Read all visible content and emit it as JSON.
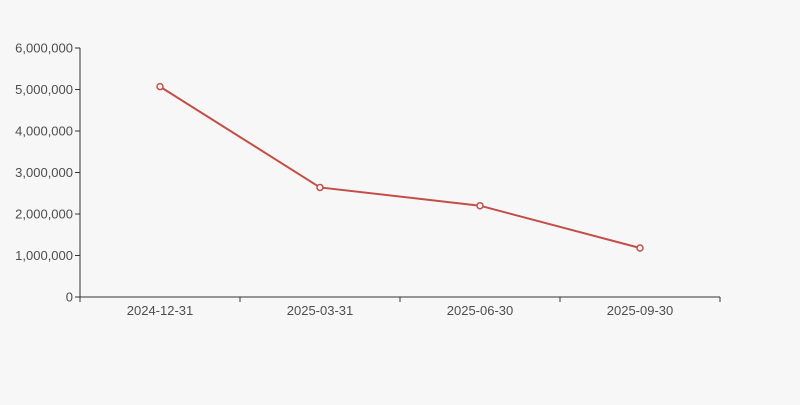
{
  "page": {
    "background": "#f7f7f7"
  },
  "chart_data": {
    "type": "line",
    "categories": [
      "2024-12-31",
      "2025-03-31",
      "2025-06-30",
      "2025-09-30"
    ],
    "values": [
      5070000,
      2640000,
      2200000,
      1180000
    ],
    "title": "",
    "xlabel": "",
    "ylabel": "",
    "ylim": [
      0,
      6000000
    ],
    "ytick_step": 1000000,
    "ytick_labels": [
      "0",
      "1,000,000",
      "2,000,000",
      "3,000,000",
      "4,000,000",
      "5,000,000",
      "6,000,000"
    ],
    "grid": false,
    "legend": false,
    "line_color": "#c34e48",
    "marker_style": "open-circle",
    "marker_fill": "#ffffff",
    "axis_color": "#333333",
    "label_color": "#4d4d4d"
  }
}
